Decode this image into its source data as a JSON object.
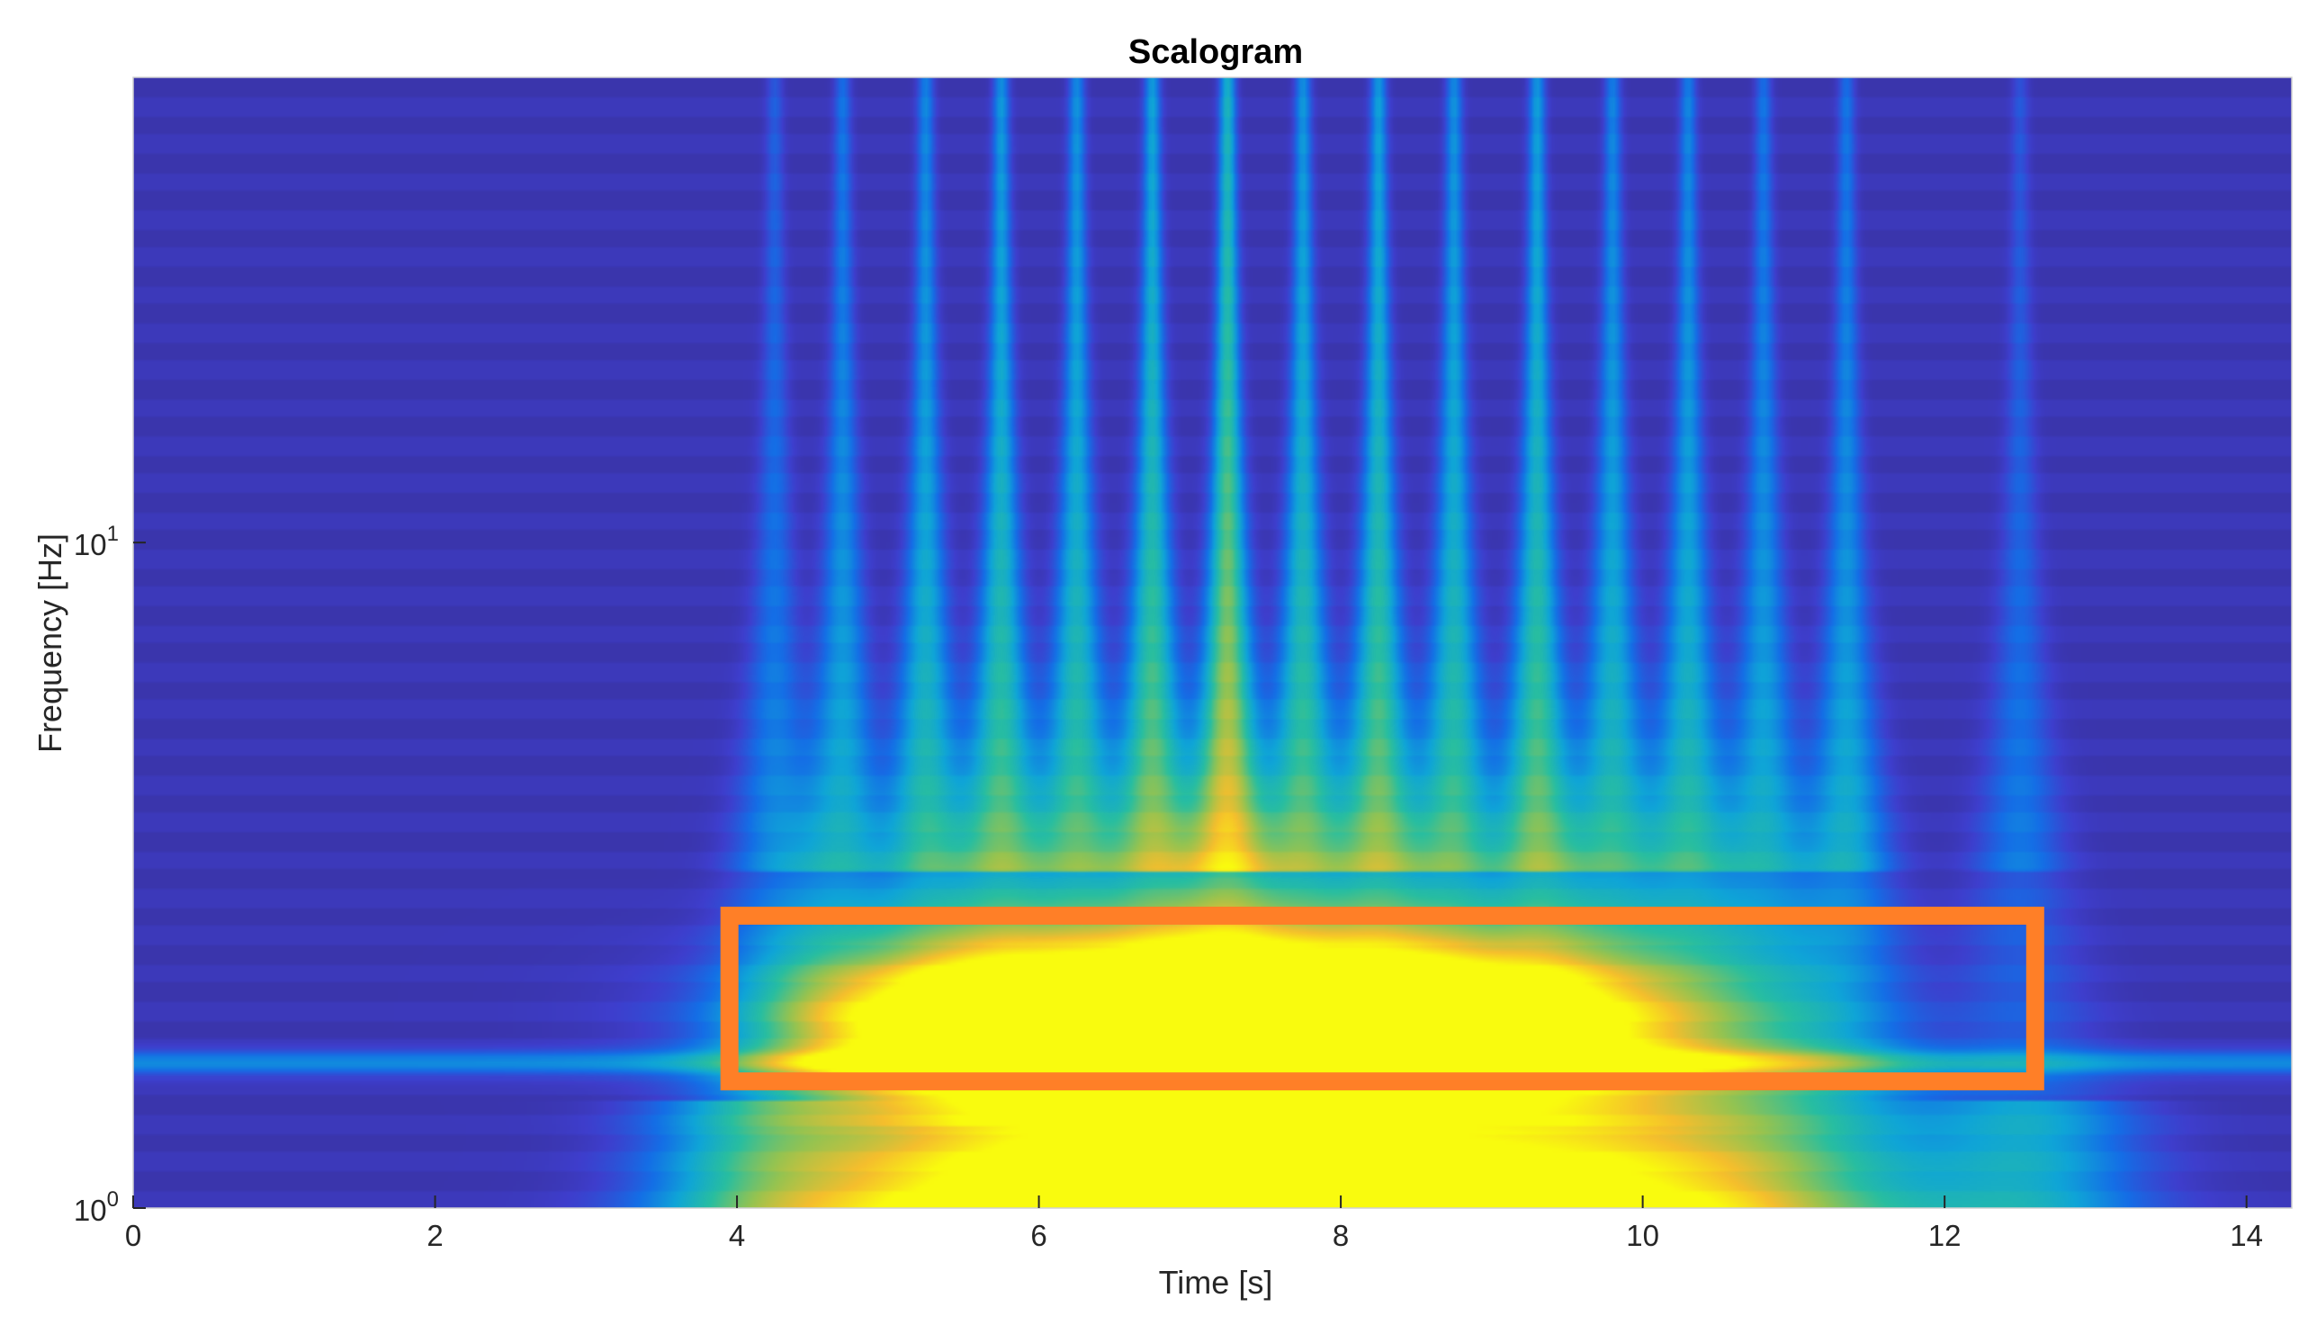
{
  "chart_data": {
    "type": "heatmap",
    "title": "Scalogram",
    "xlabel": "Time [s]",
    "ylabel": "Frequency [Hz]",
    "xlim": [
      0,
      14.3
    ],
    "ylim": [
      1,
      50
    ],
    "yscale": "log",
    "x_ticks": [
      "0",
      "2",
      "4",
      "6",
      "8",
      "10",
      "12",
      "14"
    ],
    "y_ticks": [
      {
        "base": "10",
        "exp": "0"
      },
      {
        "base": "10",
        "exp": "1"
      }
    ],
    "colormap": "parula",
    "grid": false,
    "low_freq_band": {
      "center_time": 7.2,
      "time_spread": 2.4,
      "freq_low": 1.75,
      "freq_high": 2.6,
      "peak": 1.0
    },
    "baseline_band": {
      "center_freq": 1.65,
      "time_start": 0,
      "time_end": 14.3,
      "level": 0.3
    },
    "ridges": [
      {
        "time": 4.25,
        "strength": 0.35
      },
      {
        "time": 4.7,
        "strength": 0.5
      },
      {
        "time": 5.25,
        "strength": 0.62
      },
      {
        "time": 5.75,
        "strength": 0.72
      },
      {
        "time": 6.25,
        "strength": 0.68
      },
      {
        "time": 6.75,
        "strength": 0.8
      },
      {
        "time": 7.25,
        "strength": 0.98
      },
      {
        "time": 7.75,
        "strength": 0.72
      },
      {
        "time": 8.25,
        "strength": 0.78
      },
      {
        "time": 8.75,
        "strength": 0.68
      },
      {
        "time": 9.3,
        "strength": 0.76
      },
      {
        "time": 9.8,
        "strength": 0.6
      },
      {
        "time": 10.3,
        "strength": 0.6
      },
      {
        "time": 10.8,
        "strength": 0.5
      },
      {
        "time": 11.35,
        "strength": 0.5
      },
      {
        "time": 12.5,
        "strength": 0.3
      }
    ],
    "highlight_box": {
      "x_start": 3.95,
      "x_end": 12.6,
      "y_low": 1.55,
      "y_high": 2.75,
      "color": "#ff7f27"
    }
  }
}
